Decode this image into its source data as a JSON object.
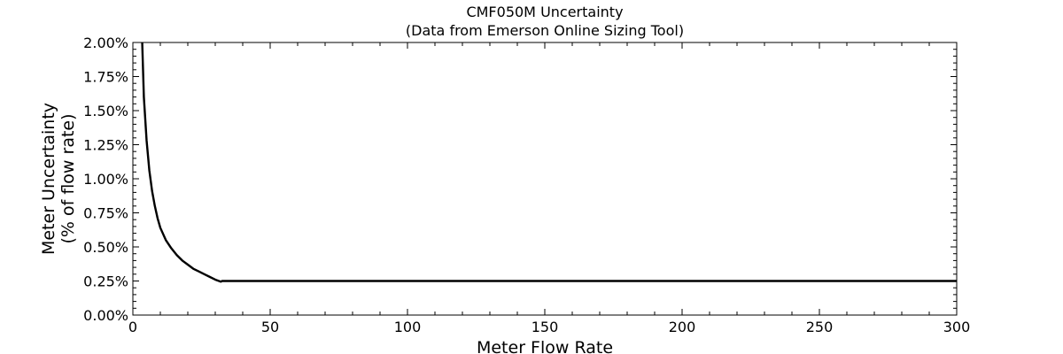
{
  "chart_data": {
    "type": "line",
    "title": "CMF050M Uncertainty",
    "subtitle": "(Data from Emerson Online Sizing Tool)",
    "xlabel": "Meter Flow Rate",
    "ylabel_lines": [
      "Meter Uncertainty",
      "(% of flow rate)"
    ],
    "xlim": [
      0,
      300
    ],
    "ylim": [
      0,
      2.0
    ],
    "x_ticks": [
      0,
      50,
      100,
      150,
      200,
      250,
      300
    ],
    "x_tick_labels": [
      "0",
      "50",
      "100",
      "150",
      "200",
      "250",
      "300"
    ],
    "y_ticks": [
      0,
      0.25,
      0.5,
      0.75,
      1.0,
      1.25,
      1.5,
      1.75,
      2.0
    ],
    "y_tick_labels": [
      "0.00%",
      "0.25%",
      "0.50%",
      "0.75%",
      "1.00%",
      "1.25%",
      "1.50%",
      "1.75%",
      "2.00%"
    ],
    "grid": false,
    "line_color": "#000000",
    "series": [
      {
        "x": [
          3.4,
          4,
          5,
          6,
          7,
          8,
          9,
          10,
          12,
          14,
          16,
          18,
          20,
          22,
          24,
          26,
          28,
          30,
          32,
          32.5,
          50,
          100,
          150,
          200,
          250,
          300
        ],
        "y": [
          2.0,
          1.6,
          1.28,
          1.06,
          0.91,
          0.8,
          0.71,
          0.64,
          0.55,
          0.49,
          0.44,
          0.4,
          0.37,
          0.34,
          0.32,
          0.3,
          0.28,
          0.26,
          0.245,
          0.25,
          0.25,
          0.25,
          0.25,
          0.25,
          0.25,
          0.25
        ]
      }
    ]
  }
}
